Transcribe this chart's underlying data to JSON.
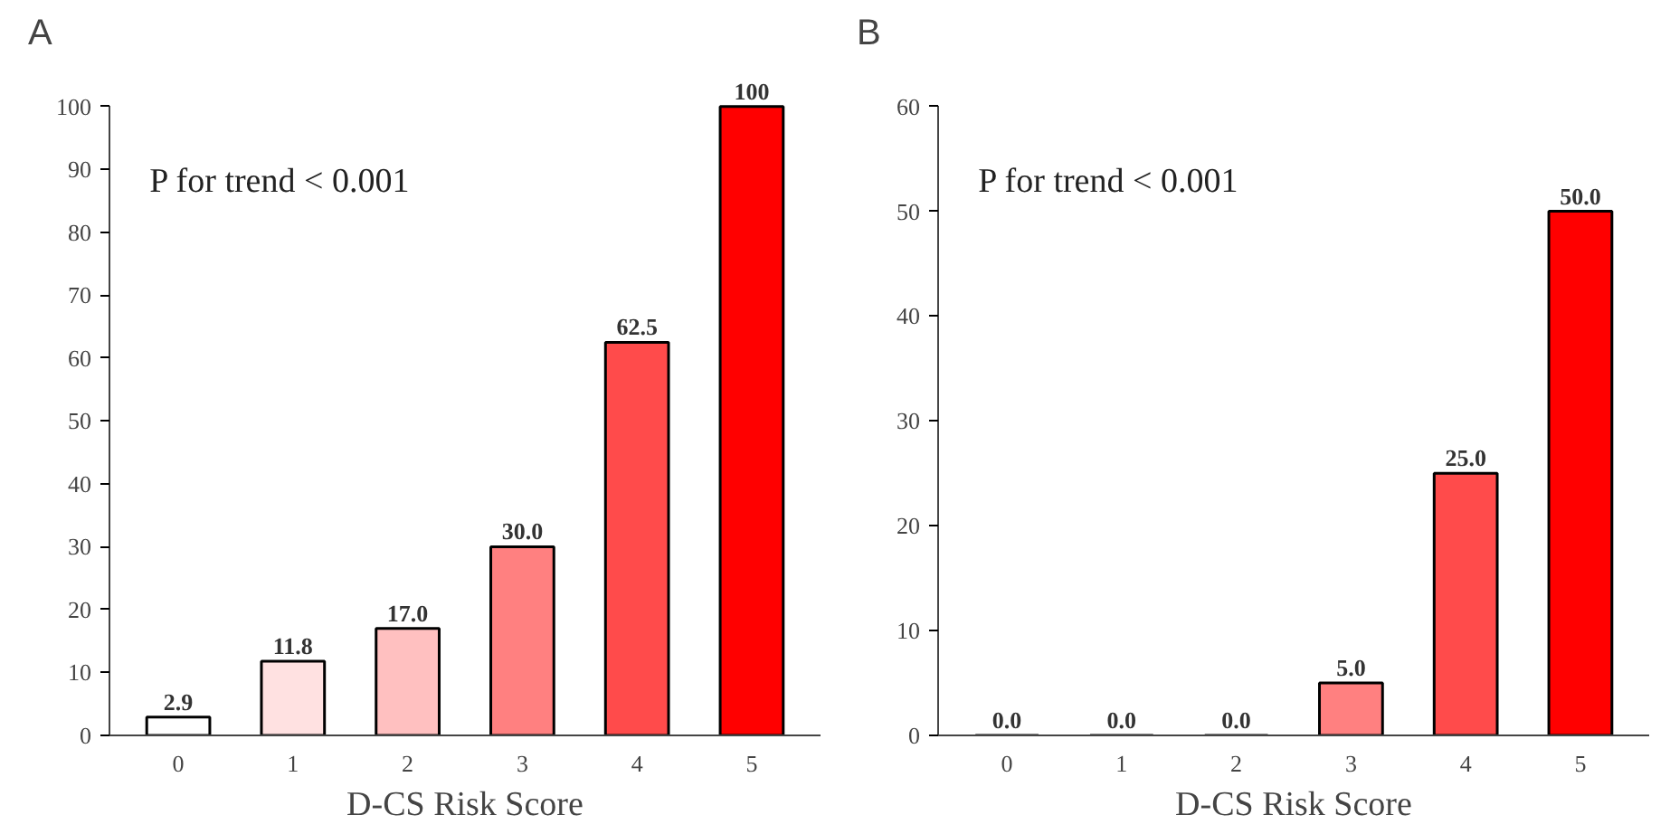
{
  "chart_data": [
    {
      "type": "bar",
      "title": "A",
      "xlabel": "D-CS Risk Score",
      "categories": [
        "0",
        "1",
        "2",
        "3",
        "4",
        "5"
      ],
      "values": [
        2.9,
        11.8,
        17.0,
        30.0,
        62.5,
        100
      ],
      "value_labels": [
        "2.9",
        "11.8",
        "17.0",
        "30.0",
        "62.5",
        "100"
      ],
      "colors": [
        "#ffffff",
        "#ffe1e1",
        "#ffc0c0",
        "#ff8080",
        "#ff4b4b",
        "#ff0000"
      ],
      "ylim": [
        0,
        100
      ],
      "yticks": [
        0,
        10,
        20,
        30,
        40,
        50,
        60,
        70,
        80,
        90,
        100
      ],
      "grid": false,
      "annotations": [
        "P for trend < 0.001"
      ]
    },
    {
      "type": "bar",
      "title": "B",
      "xlabel": "D-CS Risk Score",
      "categories": [
        "0",
        "1",
        "2",
        "3",
        "4",
        "5"
      ],
      "values": [
        0.0,
        0.0,
        0.0,
        5.0,
        25.0,
        50.0
      ],
      "value_labels": [
        "0.0",
        "0.0",
        "0.0",
        "5.0",
        "25.0",
        "50.0"
      ],
      "colors": [
        "#ffffff",
        "#ffe1e1",
        "#ffc0c0",
        "#ff8080",
        "#ff4b4b",
        "#ff0000"
      ],
      "ylim": [
        0,
        60
      ],
      "yticks": [
        0,
        10,
        20,
        30,
        40,
        50,
        60
      ],
      "grid": false,
      "annotations": [
        "P for trend < 0.001"
      ]
    }
  ]
}
